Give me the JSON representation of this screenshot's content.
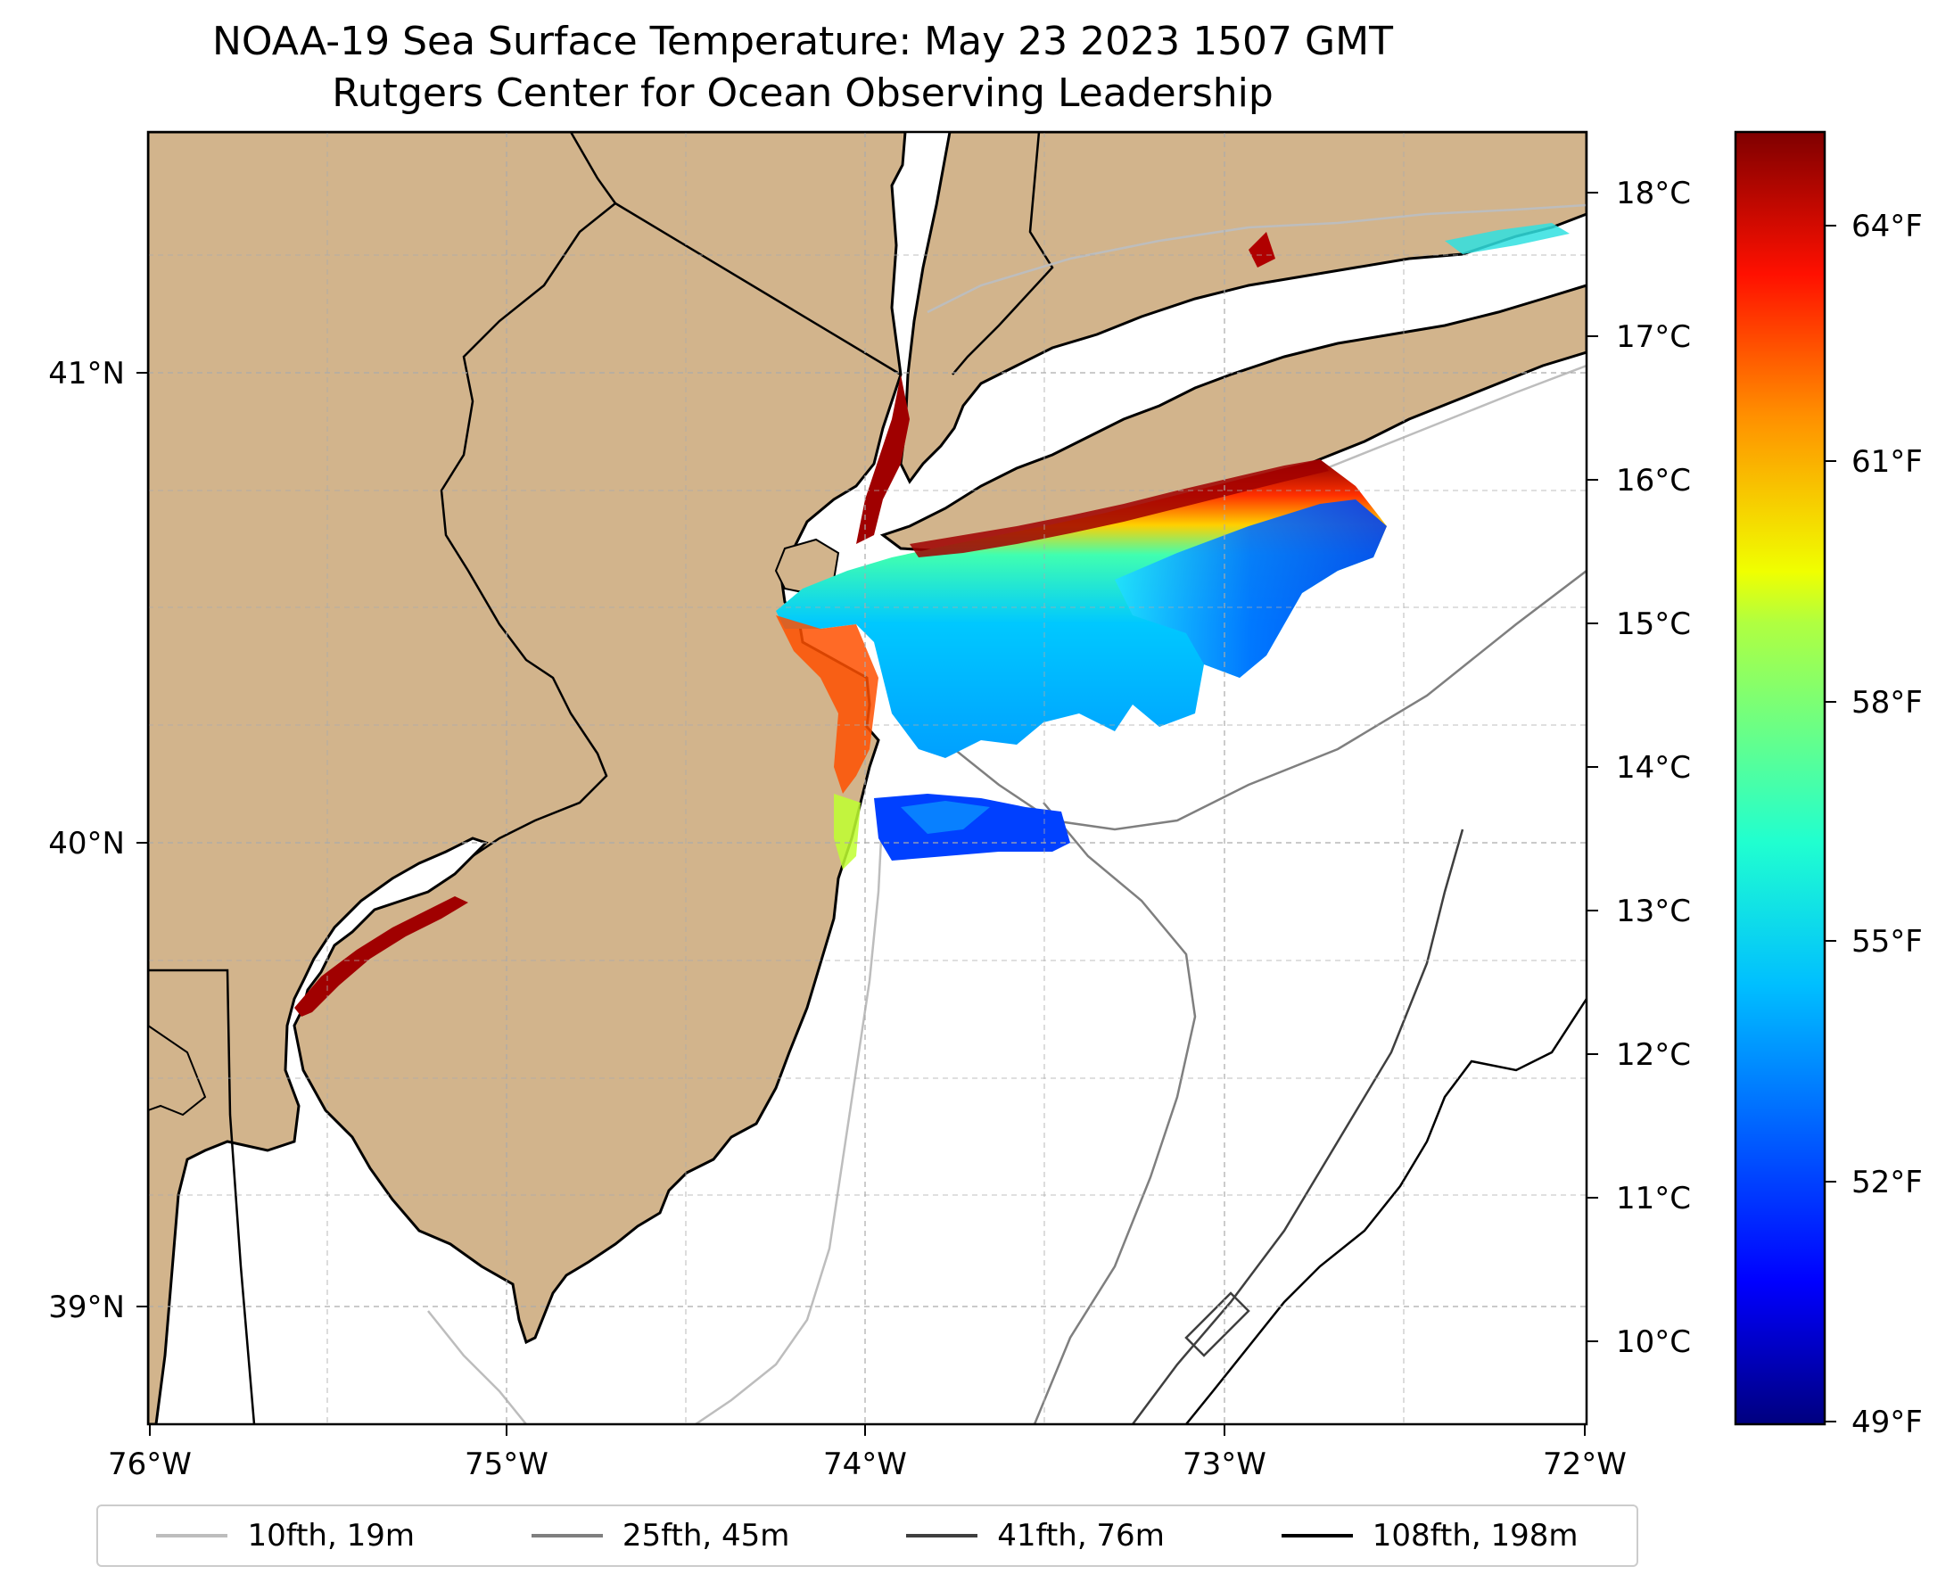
{
  "title": {
    "line1": "NOAA-19 Sea Surface Temperature: May 23 2023 1507 GMT",
    "line2": "Rutgers Center for Ocean Observing Leadership"
  },
  "map": {
    "lon_range": [
      -76,
      -72
    ],
    "lat_range": [
      38.7,
      41.5
    ],
    "x_ticks": [
      "76°W",
      "75°W",
      "74°W",
      "73°W",
      "72°W"
    ],
    "y_ticks": [
      "41°N",
      "40°N",
      "39°N"
    ],
    "land_color": "#d2b48c",
    "water_color": "#ffffff"
  },
  "colorbar": {
    "celsius_ticks": [
      "18°C",
      "17°C",
      "16°C",
      "15°C",
      "14°C",
      "13°C",
      "12°C",
      "11°C",
      "10°C"
    ],
    "fahrenheit_ticks": [
      "64°F",
      "61°F",
      "58°F",
      "55°F",
      "52°F",
      "49°F"
    ],
    "colormap": "jet",
    "range_c": [
      9.5,
      18.5
    ]
  },
  "legend": [
    {
      "label": "10fth, 19m",
      "color": "#bdbdbd"
    },
    {
      "label": "25fth, 45m",
      "color": "#7f7f7f"
    },
    {
      "label": "41fth, 76m",
      "color": "#3f3f3f"
    },
    {
      "label": "108fth, 198m",
      "color": "#000000"
    }
  ]
}
